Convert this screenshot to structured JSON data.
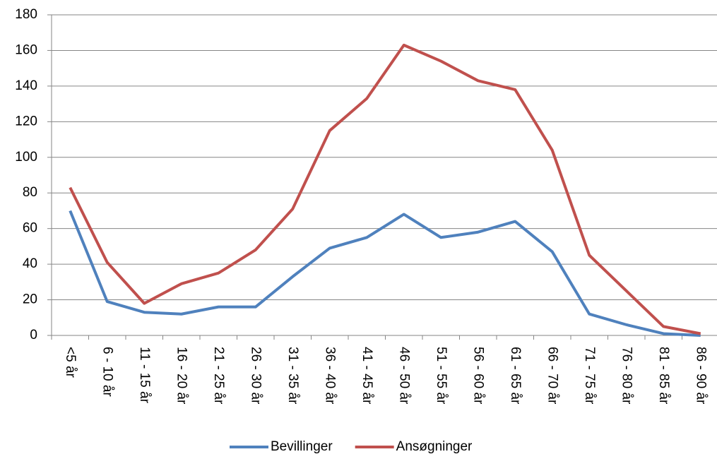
{
  "chart_data": {
    "type": "line",
    "categories": [
      "<5 år",
      "6 - 10 år",
      "11 - 15 år",
      "16 - 20 år",
      "21 - 25 år",
      "26 - 30 år",
      "31 - 35 år",
      "36 - 40 år",
      "41 - 45 år",
      "46 - 50 år",
      "51 - 55 år",
      "56 - 60 år",
      "61 - 65 år",
      "66 - 70 år",
      "71 - 75 år",
      "76 - 80 år",
      "81 - 85 år",
      "86 - 90 år"
    ],
    "series": [
      {
        "name": "Bevillinger",
        "color": "#4f81bd",
        "values": [
          70,
          19,
          13,
          12,
          16,
          16,
          33,
          49,
          55,
          68,
          55,
          58,
          64,
          47,
          12,
          6,
          1,
          0
        ]
      },
      {
        "name": "Ansøgninger",
        "color": "#c0504d",
        "values": [
          83,
          41,
          18,
          29,
          35,
          48,
          71,
          115,
          133,
          163,
          154,
          143,
          138,
          104,
          45,
          25,
          5,
          1
        ]
      }
    ],
    "ylim": [
      0,
      180
    ],
    "yticks": [
      0,
      20,
      40,
      60,
      80,
      100,
      120,
      140,
      160,
      180
    ],
    "grid": true,
    "legend": "bottom"
  }
}
